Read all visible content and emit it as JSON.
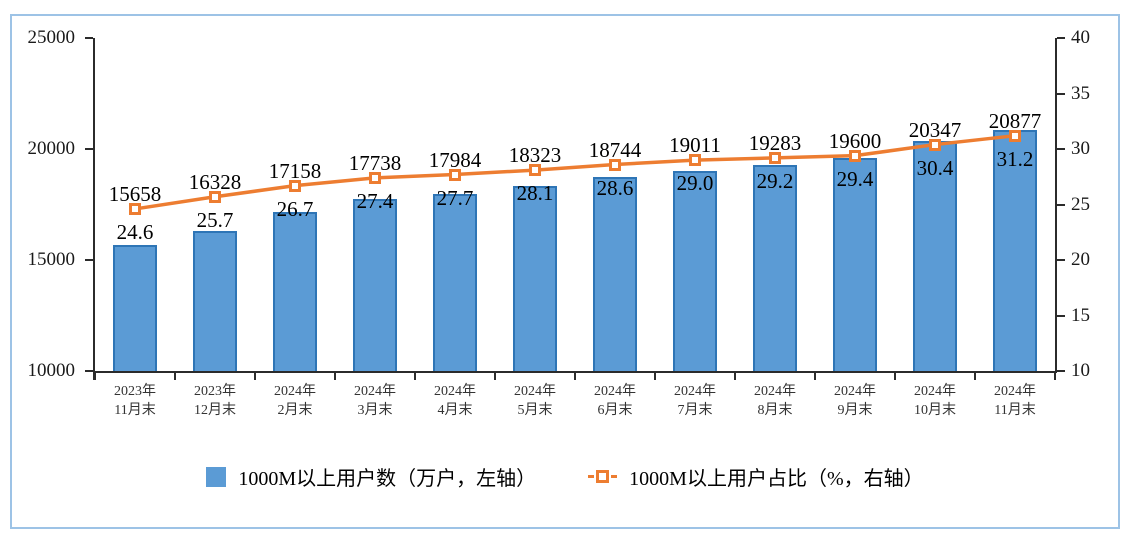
{
  "frame": {
    "border_color": "#9DC3E6",
    "background": "#ffffff"
  },
  "chart_data": {
    "type": "bar+line",
    "title": "",
    "grid": false,
    "legend_position": "bottom",
    "categories": [
      [
        "2023年",
        "11月末"
      ],
      [
        "2023年",
        "12月末"
      ],
      [
        "2024年",
        "2月末"
      ],
      [
        "2024年",
        "3月末"
      ],
      [
        "2024年",
        "4月末"
      ],
      [
        "2024年",
        "5月末"
      ],
      [
        "2024年",
        "6月末"
      ],
      [
        "2024年",
        "7月末"
      ],
      [
        "2024年",
        "8月末"
      ],
      [
        "2024年",
        "9月末"
      ],
      [
        "2024年",
        "10月末"
      ],
      [
        "2024年",
        "11月末"
      ]
    ],
    "series": [
      {
        "name": "1000M以上用户数（万户，左轴）",
        "type": "bar",
        "axis": "left",
        "fill": "#5B9BD5",
        "border_color": "#2E75B6",
        "values": [
          15658,
          16328,
          17158,
          17738,
          17984,
          18323,
          18744,
          19011,
          19283,
          19600,
          20347,
          20877
        ]
      },
      {
        "name": "1000M以上用户占比（%，右轴）",
        "type": "line",
        "axis": "right",
        "color": "#ED7D31",
        "marker": "open-square",
        "label_decimals": 1,
        "values": [
          24.6,
          25.7,
          26.7,
          27.4,
          27.7,
          28.1,
          28.6,
          29.0,
          29.2,
          29.4,
          30.4,
          31.2
        ]
      }
    ],
    "left_axis": {
      "min": 10000,
      "max": 25000,
      "step": 5000,
      "ticks": [
        "10000",
        "15000",
        "20000",
        "25000"
      ]
    },
    "right_axis": {
      "min": 10,
      "max": 40,
      "step": 5,
      "ticks": [
        "10",
        "15",
        "20",
        "25",
        "30",
        "35",
        "40"
      ]
    },
    "axis_color": "#2b2b2b"
  }
}
